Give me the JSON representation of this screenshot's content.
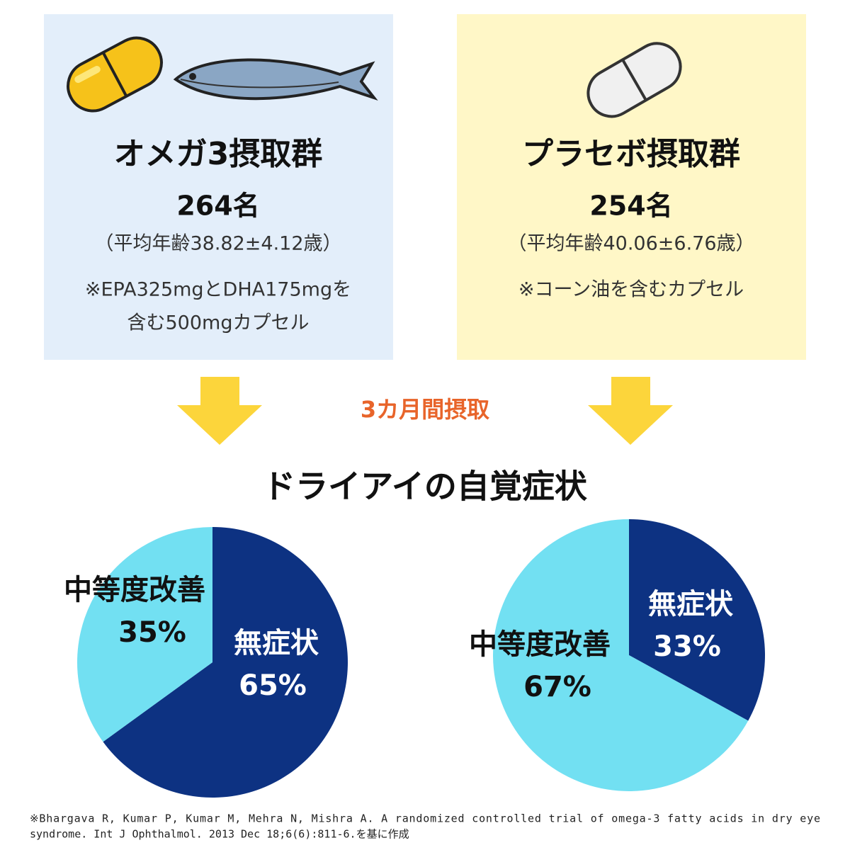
{
  "groups": [
    {
      "title": "オメガ3摂取群",
      "count": "264名",
      "age": "（平均年齢38.82±4.12歳）",
      "note": [
        "※EPA325mgとDHA175mgを",
        "含む500mgカプセル"
      ]
    },
    {
      "title": "プラセボ摂取群",
      "count": "254名",
      "age": "（平均年齢40.06±6.76歳）",
      "note": [
        "※コーン油を含むカプセル"
      ]
    }
  ],
  "duration": "3カ月間摂取",
  "section_title": "ドライアイの自覚症状",
  "chart_data": [
    {
      "type": "pie",
      "categories": [
        "無症状",
        "中等度改善"
      ],
      "values": [
        65,
        35
      ],
      "value_labels": [
        "65%",
        "35%"
      ],
      "colors": [
        "#0d3282",
        "#72e0f2"
      ]
    },
    {
      "type": "pie",
      "categories": [
        "無症状",
        "中等度改善"
      ],
      "values": [
        33,
        67
      ],
      "value_labels": [
        "33%",
        "67%"
      ],
      "colors": [
        "#0d3282",
        "#72e0f2"
      ]
    }
  ],
  "citation": [
    "※Bhargava R, Kumar P, Kumar M, Mehra N, Mishra A. A randomized controlled trial of omega-3 fatty acids in dry eye",
    "syndrome. Int J Ophthalmol. 2013 Dec 18;6(6):811-6.を基に作成"
  ]
}
